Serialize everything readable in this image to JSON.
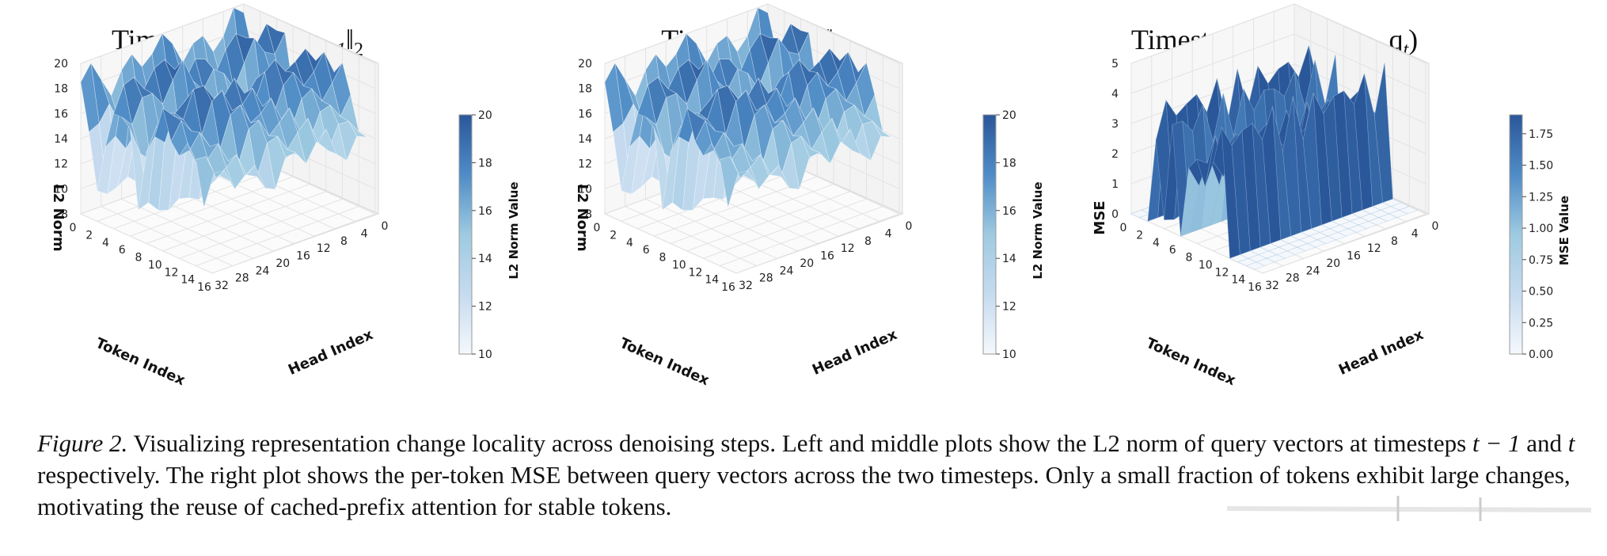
{
  "panels": [
    {
      "id": "left",
      "title_prefix": "Timestep ",
      "title_math": "t − 1: ‖q",
      "title_sub": "t−1",
      "title_suffix": "‖",
      "title_sub2": "2",
      "xlabel": "Token Index",
      "ylabel": "Head Index",
      "zlabel": "L2 Norm",
      "x_ticks": [
        "0",
        "2",
        "4",
        "6",
        "8",
        "10",
        "12",
        "14",
        "16"
      ],
      "y_ticks": [
        "32",
        "28",
        "24",
        "20",
        "16",
        "12",
        "8",
        "4",
        "0"
      ],
      "z_ticks": [
        "8",
        "10",
        "12",
        "14",
        "16",
        "18",
        "20"
      ],
      "cbar_label": "L2 Norm Value",
      "cbar_ticks": [
        "10",
        "12",
        "14",
        "16",
        "18",
        "20"
      ]
    },
    {
      "id": "middle",
      "title_prefix": "Timestep ",
      "title_math": "t: ‖q",
      "title_sub": "t",
      "title_suffix": "‖",
      "title_sub2": "2",
      "xlabel": "Token Index",
      "ylabel": "Head Index",
      "zlabel": "L2 Norm",
      "x_ticks": [
        "0",
        "2",
        "4",
        "6",
        "8",
        "10",
        "12",
        "14",
        "16"
      ],
      "y_ticks": [
        "32",
        "28",
        "24",
        "20",
        "16",
        "12",
        "8",
        "4",
        "0"
      ],
      "z_ticks": [
        "8",
        "10",
        "12",
        "14",
        "16",
        "18",
        "20"
      ],
      "cbar_label": "L2 Norm Value",
      "cbar_ticks": [
        "10",
        "12",
        "14",
        "16",
        "18",
        "20"
      ]
    },
    {
      "id": "right",
      "title_prefix": "Timestep ",
      "title_math": "t: MSE(q",
      "title_sub": "t−1",
      "title_suffix": ", q",
      "title_sub2": "t",
      "title_end": ")",
      "xlabel": "Token Index",
      "ylabel": "Head Index",
      "zlabel": "MSE",
      "x_ticks": [
        "0",
        "2",
        "4",
        "6",
        "8",
        "10",
        "12",
        "14",
        "16"
      ],
      "y_ticks": [
        "32",
        "28",
        "24",
        "20",
        "16",
        "12",
        "8",
        "4",
        "0"
      ],
      "z_ticks": [
        "0",
        "1",
        "2",
        "3",
        "4",
        "5"
      ],
      "cbar_label": "MSE Value",
      "cbar_ticks": [
        "0.00",
        "0.25",
        "0.50",
        "0.75",
        "1.00",
        "1.25",
        "1.50",
        "1.75"
      ]
    }
  ],
  "chart_data": [
    {
      "type": "surface3d",
      "title": "Timestep t − 1: ‖q_{t−1}‖_2",
      "xlabel": "Token Index",
      "ylabel": "Head Index",
      "zlabel": "L2 Norm",
      "xlim": [
        0,
        16
      ],
      "ylim": [
        0,
        32
      ],
      "zlim": [
        8,
        20
      ],
      "colorbar": {
        "label": "L2 Norm Value",
        "range": [
          10,
          20
        ],
        "colormap": "Blues"
      },
      "token_profile": [
        18.5,
        15,
        10,
        14,
        19,
        18,
        15,
        10,
        16,
        17,
        19,
        18,
        17,
        16,
        15,
        14
      ]
    },
    {
      "type": "surface3d",
      "title": "Timestep t: ‖q_t‖_2",
      "xlabel": "Token Index",
      "ylabel": "Head Index",
      "zlabel": "L2 Norm",
      "xlim": [
        0,
        16
      ],
      "ylim": [
        0,
        32
      ],
      "zlim": [
        8,
        20
      ],
      "colorbar": {
        "label": "L2 Norm Value",
        "range": [
          10,
          20
        ],
        "colormap": "Blues"
      },
      "token_profile": [
        18.5,
        15,
        10,
        14,
        19,
        18,
        15,
        10,
        16,
        17,
        19,
        18,
        17,
        16,
        15,
        14
      ]
    },
    {
      "type": "surface3d",
      "title": "Timestep t: MSE(q_{t−1}, q_t)",
      "xlabel": "Token Index",
      "ylabel": "Head Index",
      "zlabel": "MSE",
      "xlim": [
        0,
        16
      ],
      "ylim": [
        0,
        32
      ],
      "zlim": [
        0,
        5
      ],
      "colorbar": {
        "label": "MSE Value",
        "range": [
          0,
          1.9
        ],
        "colormap": "Blues"
      },
      "token_profile": [
        0,
        0,
        0,
        4.2,
        0.3,
        4.0,
        0,
        2.5,
        3.0,
        3.6,
        3.2,
        4.4,
        0,
        0,
        0,
        0
      ]
    }
  ],
  "caption": {
    "label": "Figure 2.",
    "text_1": " Visualizing representation change locality across denoising steps. Left and middle plots show the L2 norm of query vectors at timesteps ",
    "math_1": "t − 1",
    "text_2": " and ",
    "math_2": "t",
    "text_3": " respectively. The right plot shows the per-token MSE between query vectors across the two timesteps. Only a small fraction of tokens exhibit large changes, motivating the reuse of cached-prefix attention for stable tokens."
  }
}
